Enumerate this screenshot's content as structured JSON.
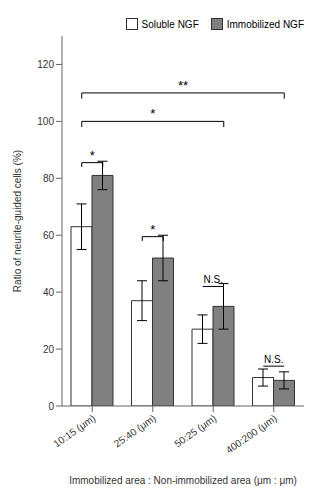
{
  "chart_data": {
    "type": "bar",
    "xlabel": "Immobilized area : Non-immobilized area (μm : μm)",
    "ylabel": "Ratio of neurite-guided cells (%)",
    "categories": [
      "10:15 (μm)",
      "25:40 (μm)",
      "50:25 (μm)",
      "400:200 (μm)"
    ],
    "series": [
      {
        "name": "Soluble NGF",
        "color": "#ffffff",
        "values": [
          63,
          37,
          27,
          10
        ],
        "errors": [
          8,
          7,
          5,
          3
        ]
      },
      {
        "name": "Immobilized NGF",
        "color": "#808080",
        "values": [
          81,
          52,
          35,
          9
        ],
        "errors": [
          5,
          8,
          8,
          3
        ]
      }
    ],
    "ylim": [
      0,
      130
    ],
    "yticks": [
      0,
      20,
      40,
      60,
      80,
      100,
      120
    ],
    "grid": false,
    "legend": "upper right",
    "annotations": [
      {
        "text": "*",
        "y": 84,
        "from": {
          "category": "10:15 (μm)",
          "series": "Soluble NGF"
        },
        "to": {
          "category": "10:15 (μm)",
          "series": "Immobilized NGF"
        },
        "line_style": "bracket_up"
      },
      {
        "text": "*",
        "y": 58,
        "from": {
          "category": "25:40 (μm)",
          "series": "Soluble NGF"
        },
        "to": {
          "category": "25:40 (μm)",
          "series": "Immobilized NGF"
        },
        "line_style": "bracket_up"
      },
      {
        "text": "N.S.",
        "y": 42,
        "from": {
          "category": "50:25 (μm)",
          "series": "Soluble NGF"
        },
        "to": {
          "category": "50:25 (μm)",
          "series": "Immobilized NGF"
        },
        "line_style": "flat"
      },
      {
        "text": "N.S.",
        "y": 14,
        "from": {
          "category": "400:200 (μm)",
          "series": "Soluble NGF"
        },
        "to": {
          "category": "400:200 (μm)",
          "series": "Immobilized NGF"
        },
        "line_style": "flat"
      },
      {
        "text": "*",
        "y": 100,
        "from": {
          "category": "10:15 (μm)",
          "series": "Soluble NGF"
        },
        "to": {
          "category": "50:25 (μm)",
          "series": "Immobilized NGF"
        },
        "line_style": "bracket_down"
      },
      {
        "text": "**",
        "y": 110,
        "from": {
          "category": "10:15 (μm)",
          "series": "Soluble NGF"
        },
        "to": {
          "category": "400:200 (μm)",
          "series": "Immobilized NGF"
        },
        "line_style": "bracket_down"
      }
    ]
  }
}
